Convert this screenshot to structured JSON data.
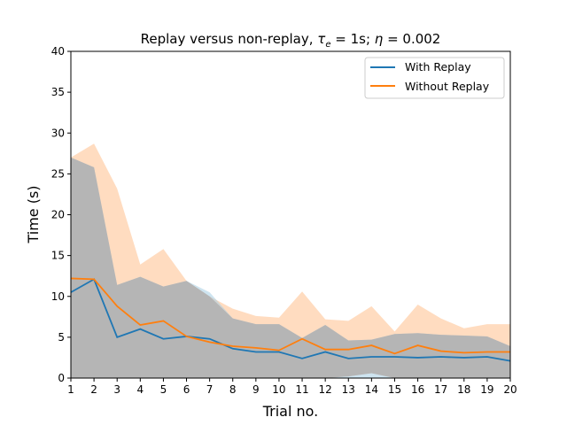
{
  "chart_data": {
    "type": "line",
    "title": "Replay versus non-replay, τe = 1s; η = 0.002",
    "title_parts": {
      "prefix": "Replay versus non-replay, ",
      "tau": "τ",
      "tau_sub": "e",
      "tau_value": " = 1s; ",
      "eta": "η",
      "eta_value": " = 0.002"
    },
    "xlabel": "Trial no.",
    "ylabel": "Time (s)",
    "xlim": [
      1,
      20
    ],
    "ylim": [
      0,
      40
    ],
    "xticks": [
      "1",
      "2",
      "3",
      "4",
      "5",
      "6",
      "7",
      "8",
      "9",
      "10",
      "11",
      "12",
      "13",
      "14",
      "15",
      "16",
      "17",
      "18",
      "19",
      "20"
    ],
    "yticks": [
      "0",
      "5",
      "10",
      "15",
      "20",
      "25",
      "30",
      "35",
      "40"
    ],
    "grid": false,
    "legend_position": "top-right",
    "x": [
      1,
      2,
      3,
      4,
      5,
      6,
      7,
      8,
      9,
      10,
      11,
      12,
      13,
      14,
      15,
      16,
      17,
      18,
      19,
      20
    ],
    "series": [
      {
        "name": "With Replay",
        "color": "#1f77b4",
        "band_color": "#a6cde4",
        "values": [
          10.5,
          12.1,
          5.0,
          6.0,
          4.8,
          5.1,
          4.8,
          3.6,
          3.2,
          3.2,
          2.4,
          3.2,
          2.4,
          2.6,
          2.6,
          2.5,
          2.6,
          2.5,
          2.6,
          2.1
        ],
        "upper": [
          27.0,
          25.8,
          11.4,
          12.4,
          11.2,
          11.9,
          10.5,
          7.3,
          6.6,
          6.6,
          4.9,
          6.5,
          4.6,
          4.7,
          5.4,
          5.5,
          5.3,
          5.2,
          5.1,
          3.9
        ],
        "lower": [
          0,
          0,
          0,
          0,
          0,
          0,
          0,
          0,
          0,
          0,
          0,
          0,
          0,
          0,
          0,
          0,
          0,
          0,
          0,
          0
        ]
      },
      {
        "name": "Without Replay",
        "color": "#ff7f0e",
        "band_color": "#ffdcc0",
        "values": [
          12.2,
          12.1,
          8.8,
          6.5,
          7.0,
          5.1,
          4.4,
          3.9,
          3.7,
          3.4,
          4.8,
          3.5,
          3.5,
          4.0,
          3.0,
          4.0,
          3.3,
          3.1,
          3.2,
          3.2
        ],
        "upper": [
          27.0,
          28.7,
          23.2,
          13.9,
          15.8,
          11.9,
          10.0,
          8.5,
          7.6,
          7.4,
          10.6,
          7.2,
          7.0,
          8.8,
          5.7,
          9.0,
          7.3,
          6.1,
          6.6,
          6.6
        ],
        "lower": [
          0,
          0,
          0,
          0,
          0,
          0,
          0,
          0,
          0,
          0,
          0,
          0,
          0.2,
          0.6,
          0,
          0,
          0,
          0,
          0,
          0
        ]
      }
    ]
  }
}
